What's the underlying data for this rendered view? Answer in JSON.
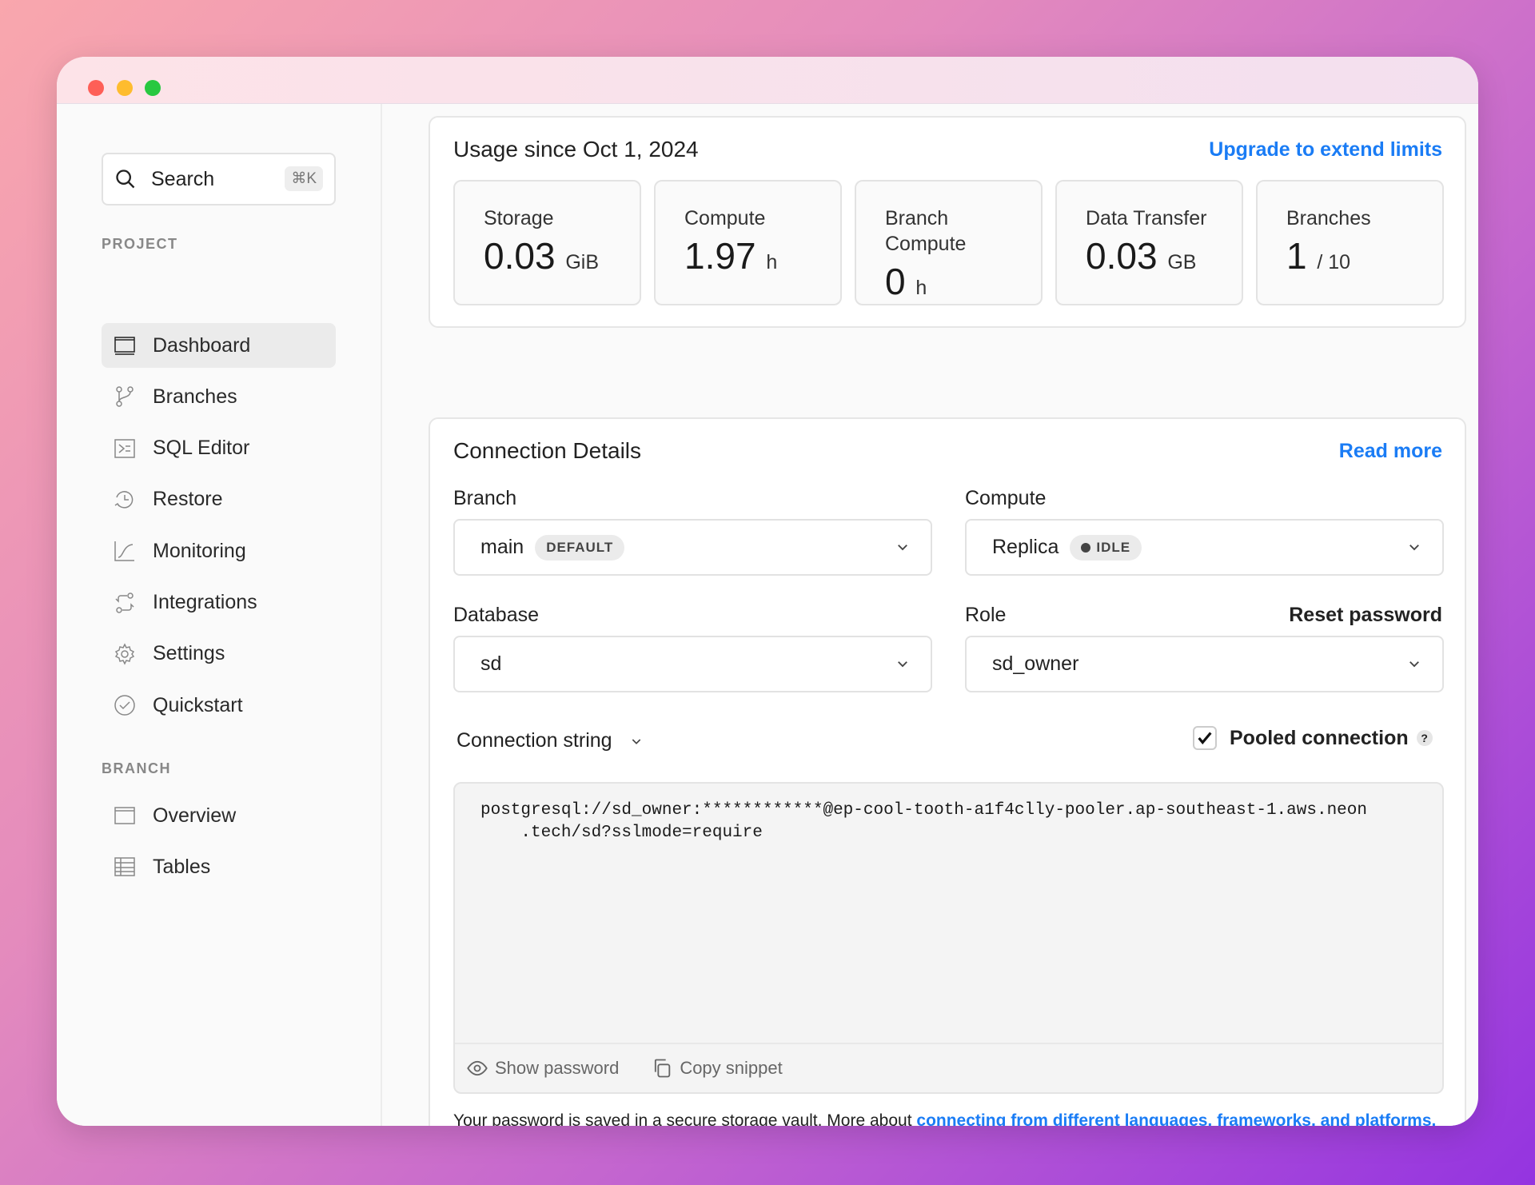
{
  "window": {
    "controls": [
      "close",
      "minimize",
      "maximize"
    ],
    "colors": {
      "close": "#fe5f57",
      "minimize": "#febc2e",
      "maximize": "#28c840"
    }
  },
  "sidebar": {
    "search": {
      "label": "Search",
      "shortcut": "⌘K"
    },
    "sections": [
      {
        "title": "PROJECT",
        "items": [
          {
            "label": "Dashboard",
            "icon": "dashboard-icon",
            "active": true
          },
          {
            "label": "Branches",
            "icon": "branch-icon"
          },
          {
            "label": "SQL Editor",
            "icon": "terminal-icon"
          },
          {
            "label": "Restore",
            "icon": "restore-icon"
          },
          {
            "label": "Monitoring",
            "icon": "chart-icon"
          },
          {
            "label": "Integrations",
            "icon": "integrations-icon"
          },
          {
            "label": "Settings",
            "icon": "gear-icon"
          },
          {
            "label": "Quickstart",
            "icon": "check-circle-icon"
          }
        ]
      },
      {
        "title": "BRANCH",
        "items": [
          {
            "label": "Overview",
            "icon": "overview-icon"
          },
          {
            "label": "Tables",
            "icon": "table-icon"
          }
        ]
      }
    ]
  },
  "usage": {
    "title": "Usage since Oct 1, 2024",
    "upgrade_link": "Upgrade to extend limits",
    "stats": [
      {
        "label": "Storage",
        "value": "0.03",
        "unit": "GiB"
      },
      {
        "label": "Compute",
        "value": "1.97",
        "unit": "h"
      },
      {
        "label": "Branch Compute",
        "value": "0",
        "unit": "h"
      },
      {
        "label": "Data Transfer",
        "value": "0.03",
        "unit": "GB"
      },
      {
        "label": "Branches",
        "value": "1",
        "unit": "/ 10"
      }
    ]
  },
  "connection": {
    "title": "Connection Details",
    "read_more": "Read more",
    "branch": {
      "label": "Branch",
      "value": "main",
      "badge": "DEFAULT"
    },
    "compute": {
      "label": "Compute",
      "value": "Replica",
      "badge": "IDLE"
    },
    "database": {
      "label": "Database",
      "value": "sd"
    },
    "role": {
      "label": "Role",
      "value": "sd_owner",
      "reset": "Reset password"
    },
    "string_selector": "Connection string",
    "pooled": {
      "label": "Pooled connection",
      "checked": true,
      "help": "?"
    },
    "snippet": "postgresql://sd_owner:************@ep-cool-tooth-a1f4clly-pooler.ap-southeast-1.aws.neon\n    .tech/sd?sslmode=require",
    "show_password": "Show password",
    "copy_snippet": "Copy snippet",
    "note_text": "Your password is saved in a secure storage vault. More about ",
    "note_link": "connecting from different languages, frameworks, and platforms."
  },
  "colors": {
    "accent": "#1a7cf5"
  }
}
